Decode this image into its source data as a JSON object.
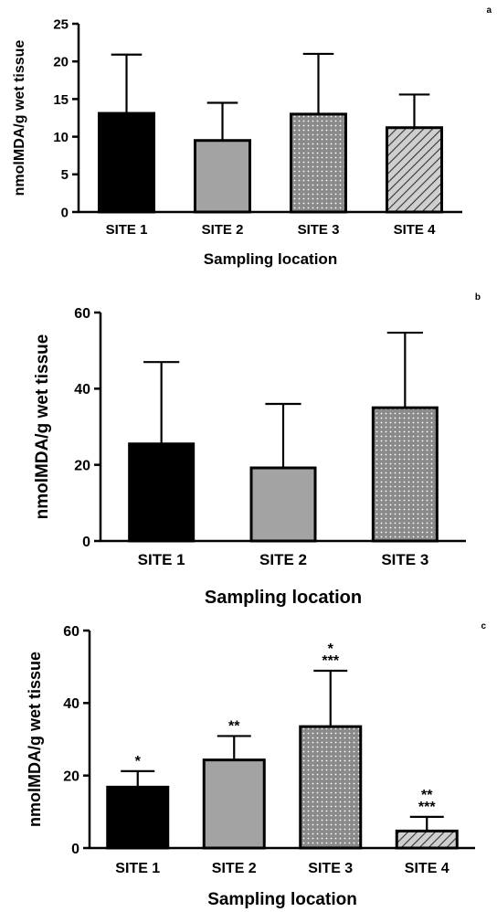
{
  "chart_data": [
    {
      "panel_label": "a",
      "type": "bar",
      "xlabel": "Sampling location",
      "ylabel": "nmolMDA/g wet tissue",
      "ylim": [
        0,
        25
      ],
      "yticks": [
        "0",
        "5",
        "10",
        "15",
        "20",
        "25"
      ],
      "categories": [
        "SITE 1",
        "SITE 2",
        "SITE 3",
        "SITE 4"
      ],
      "values": [
        13.1,
        9.5,
        13.0,
        11.2
      ],
      "errors": [
        7.8,
        5.0,
        8.0,
        4.4
      ],
      "fills": [
        "solid-black",
        "solid-gray",
        "dotted-gray",
        "hatched-gray"
      ],
      "annotations": [
        "",
        "",
        "",
        ""
      ]
    },
    {
      "panel_label": "b",
      "type": "bar",
      "xlabel": "Sampling location",
      "ylabel": "nmolMDA/g wet tissue",
      "ylim": [
        0,
        60
      ],
      "yticks": [
        "0",
        "20",
        "40",
        "60"
      ],
      "categories": [
        "SITE 1",
        "SITE 2",
        "SITE 3"
      ],
      "values": [
        25.5,
        19.2,
        35.0
      ],
      "errors": [
        21.5,
        16.8,
        19.7
      ],
      "fills": [
        "solid-black",
        "solid-gray",
        "dotted-gray"
      ],
      "annotations": [
        "",
        "",
        ""
      ]
    },
    {
      "panel_label": "c",
      "type": "bar",
      "xlabel": "Sampling location",
      "ylabel": "nmolMDA/g wet tissue",
      "ylim": [
        0,
        60
      ],
      "yticks": [
        "0",
        "20",
        "40",
        "60"
      ],
      "categories": [
        "SITE 1",
        "SITE 2",
        "SITE 3",
        "SITE 4"
      ],
      "values": [
        16.8,
        24.3,
        33.5,
        4.7
      ],
      "errors": [
        4.4,
        6.6,
        15.4,
        3.9
      ],
      "fills": [
        "solid-black",
        "solid-gray",
        "dotted-gray",
        "hatched-gray"
      ],
      "annotations": [
        "*",
        "**",
        "*\n***",
        "**\n***"
      ]
    }
  ]
}
